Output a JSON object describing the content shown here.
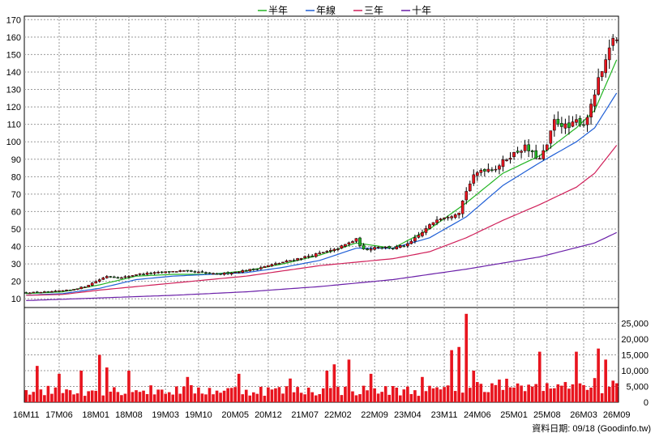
{
  "legend": [
    {
      "label": "半年",
      "color": "#22b422"
    },
    {
      "label": "年線",
      "color": "#1f5fd6"
    },
    {
      "label": "三年",
      "color": "#d0205a"
    },
    {
      "label": "十年",
      "color": "#6a1fa8"
    }
  ],
  "footer": {
    "source": "資料日期: 09/18  (Goodinfo.tw)"
  },
  "chart_data": {
    "type": "candlestick",
    "price_axis": {
      "ticks": [
        10,
        20,
        30,
        40,
        50,
        60,
        70,
        80,
        90,
        100,
        110,
        120,
        130,
        140,
        150,
        160,
        170
      ],
      "ylim": [
        5,
        172
      ]
    },
    "volume_axis": {
      "ticks": [
        "0",
        "5,000",
        "10,000",
        "15,000",
        "20,000",
        "25,000"
      ],
      "ylim": [
        0,
        30000
      ]
    },
    "x_tick_labels": [
      "16M11",
      "17M06",
      "18M01",
      "18M08",
      "19M03",
      "19M10",
      "20M05",
      "20M12",
      "21M07",
      "22M02",
      "22M09",
      "23M04",
      "23M11",
      "24M06",
      "25M01",
      "25M08",
      "26M03",
      "26M09"
    ],
    "price_anchors": [
      [
        0,
        13.5
      ],
      [
        6,
        14
      ],
      [
        12,
        15
      ],
      [
        16,
        17
      ],
      [
        20,
        21
      ],
      [
        22,
        23
      ],
      [
        26,
        22
      ],
      [
        30,
        24
      ],
      [
        36,
        25
      ],
      [
        42,
        26
      ],
      [
        48,
        25
      ],
      [
        52,
        24
      ],
      [
        56,
        25
      ],
      [
        62,
        27
      ],
      [
        66,
        29
      ],
      [
        70,
        31
      ],
      [
        74,
        33
      ],
      [
        78,
        35
      ],
      [
        84,
        38
      ],
      [
        88,
        42
      ],
      [
        90,
        44
      ],
      [
        92,
        38
      ],
      [
        96,
        40
      ],
      [
        100,
        39
      ],
      [
        104,
        41
      ],
      [
        108,
        48
      ],
      [
        112,
        56
      ],
      [
        116,
        58
      ],
      [
        118,
        60
      ],
      [
        120,
        72
      ],
      [
        122,
        80
      ],
      [
        124,
        84
      ],
      [
        128,
        85
      ],
      [
        132,
        92
      ],
      [
        136,
        97
      ],
      [
        138,
        93
      ],
      [
        140,
        90
      ],
      [
        142,
        98
      ],
      [
        144,
        112
      ],
      [
        146,
        110
      ],
      [
        148,
        108
      ],
      [
        150,
        112
      ],
      [
        152,
        110
      ],
      [
        154,
        120
      ],
      [
        156,
        135
      ],
      [
        158,
        145
      ],
      [
        160,
        160
      ],
      [
        161,
        158
      ]
    ],
    "volume_spikes": [
      [
        3,
        11500
      ],
      [
        9,
        9000
      ],
      [
        15,
        10000
      ],
      [
        20,
        15000
      ],
      [
        22,
        11000
      ],
      [
        28,
        10000
      ],
      [
        44,
        8000
      ],
      [
        58,
        9000
      ],
      [
        72,
        7500
      ],
      [
        82,
        10000
      ],
      [
        84,
        12000
      ],
      [
        88,
        13500
      ],
      [
        94,
        9000
      ],
      [
        108,
        8000
      ],
      [
        116,
        16500
      ],
      [
        118,
        17500
      ],
      [
        120,
        28000
      ],
      [
        122,
        10000
      ],
      [
        140,
        16000
      ],
      [
        150,
        16000
      ],
      [
        156,
        17000
      ],
      [
        158,
        13500
      ],
      [
        161,
        6000
      ]
    ],
    "series": [
      {
        "name": "半年",
        "values": [
          [
            0,
            13
          ],
          [
            10,
            14
          ],
          [
            20,
            18
          ],
          [
            30,
            23
          ],
          [
            40,
            24
          ],
          [
            50,
            24
          ],
          [
            60,
            26
          ],
          [
            70,
            30
          ],
          [
            80,
            35
          ],
          [
            90,
            42
          ],
          [
            100,
            39
          ],
          [
            110,
            50
          ],
          [
            120,
            65
          ],
          [
            130,
            82
          ],
          [
            140,
            92
          ],
          [
            150,
            108
          ],
          [
            155,
            118
          ],
          [
            161,
            147
          ]
        ]
      },
      {
        "name": "年線",
        "values": [
          [
            0,
            12
          ],
          [
            10,
            13
          ],
          [
            20,
            16
          ],
          [
            30,
            21
          ],
          [
            40,
            23
          ],
          [
            50,
            24
          ],
          [
            60,
            25
          ],
          [
            70,
            28
          ],
          [
            80,
            32
          ],
          [
            90,
            39
          ],
          [
            100,
            39
          ],
          [
            110,
            45
          ],
          [
            120,
            57
          ],
          [
            130,
            75
          ],
          [
            140,
            88
          ],
          [
            150,
            100
          ],
          [
            155,
            108
          ],
          [
            161,
            128
          ]
        ]
      },
      {
        "name": "三年",
        "values": [
          [
            0,
            12
          ],
          [
            10,
            12.5
          ],
          [
            20,
            15
          ],
          [
            30,
            17
          ],
          [
            40,
            19
          ],
          [
            50,
            21
          ],
          [
            60,
            23
          ],
          [
            70,
            26
          ],
          [
            80,
            29
          ],
          [
            90,
            31
          ],
          [
            100,
            33
          ],
          [
            110,
            37
          ],
          [
            120,
            45
          ],
          [
            130,
            55
          ],
          [
            140,
            64
          ],
          [
            150,
            74
          ],
          [
            155,
            82
          ],
          [
            161,
            98
          ]
        ]
      },
      {
        "name": "十年",
        "values": [
          [
            0,
            9
          ],
          [
            20,
            10.5
          ],
          [
            40,
            12
          ],
          [
            60,
            14
          ],
          [
            80,
            17
          ],
          [
            100,
            21
          ],
          [
            120,
            27
          ],
          [
            140,
            34
          ],
          [
            155,
            42
          ],
          [
            161,
            48
          ]
        ]
      }
    ]
  }
}
